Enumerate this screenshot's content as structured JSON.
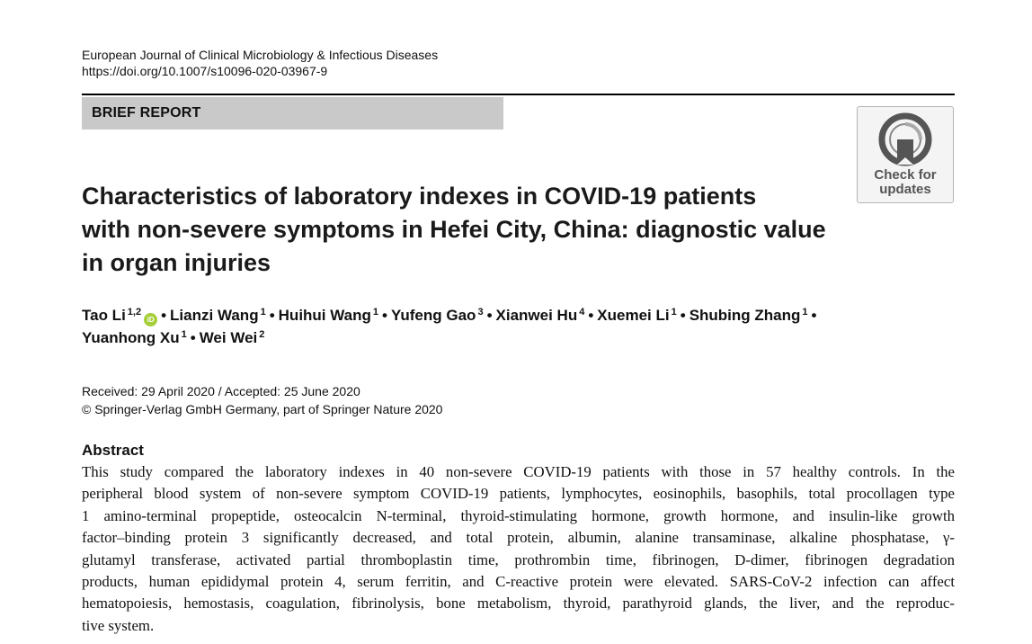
{
  "journal": {
    "name": "European Journal of Clinical Microbiology & Infectious Diseases",
    "doi": "https://doi.org/10.1007/s10096-020-03967-9"
  },
  "section_label": "BRIEF REPORT",
  "badge": {
    "line1": "Check for",
    "line2": "updates"
  },
  "title_lines": [
    "Characteristics of laboratory indexes in COVID-19 patients",
    "with non-severe symptoms in Hefei City, China: diagnostic value",
    "in organ injuries"
  ],
  "authors": [
    {
      "name": "Tao Li",
      "aff": "1,2",
      "orcid": true
    },
    {
      "name": "Lianzi Wang",
      "aff": "1"
    },
    {
      "name": "Huihui Wang",
      "aff": "1"
    },
    {
      "name": "Yufeng Gao",
      "aff": "3"
    },
    {
      "name": "Xianwei Hu",
      "aff": "4"
    },
    {
      "name": "Xuemei Li",
      "aff": "1"
    },
    {
      "name": "Shubing Zhang",
      "aff": "1"
    },
    {
      "name": "Yuanhong Xu",
      "aff": "1"
    },
    {
      "name": "Wei Wei",
      "aff": "2"
    }
  ],
  "orcid_label": "iD",
  "separator": "•",
  "dates": {
    "received_accepted": "Received: 29 April 2020 / Accepted: 25 June 2020",
    "copyright": "© Springer-Verlag GmbH Germany, part of Springer Nature 2020"
  },
  "abstract": {
    "heading": "Abstract",
    "lines": [
      "This study compared the laboratory indexes in 40 non-severe COVID-19 patients with those in 57 healthy controls. In the",
      "peripheral blood system of non-severe symptom COVID-19 patients, lymphocytes, eosinophils, basophils, total procollagen type",
      "1 amino-terminal propeptide, osteocalcin N-terminal, thyroid-stimulating hormone, growth hormone, and insulin-like growth",
      "factor–binding protein 3 significantly decreased, and total protein, albumin, alanine transaminase, alkaline phosphatase, γ-",
      "glutamyl transferase, activated partial thromboplastin time, prothrombin time, fibrinogen, D-dimer, fibrinogen degradation",
      "products, human epididymal protein 4, serum ferritin, and C-reactive protein were elevated. SARS-CoV-2 infection can affect",
      "hematopoiesis, hemostasis, coagulation, fibrinolysis, bone metabolism, thyroid, parathyroid glands, the liver, and the reproduc-",
      "tive system."
    ]
  }
}
